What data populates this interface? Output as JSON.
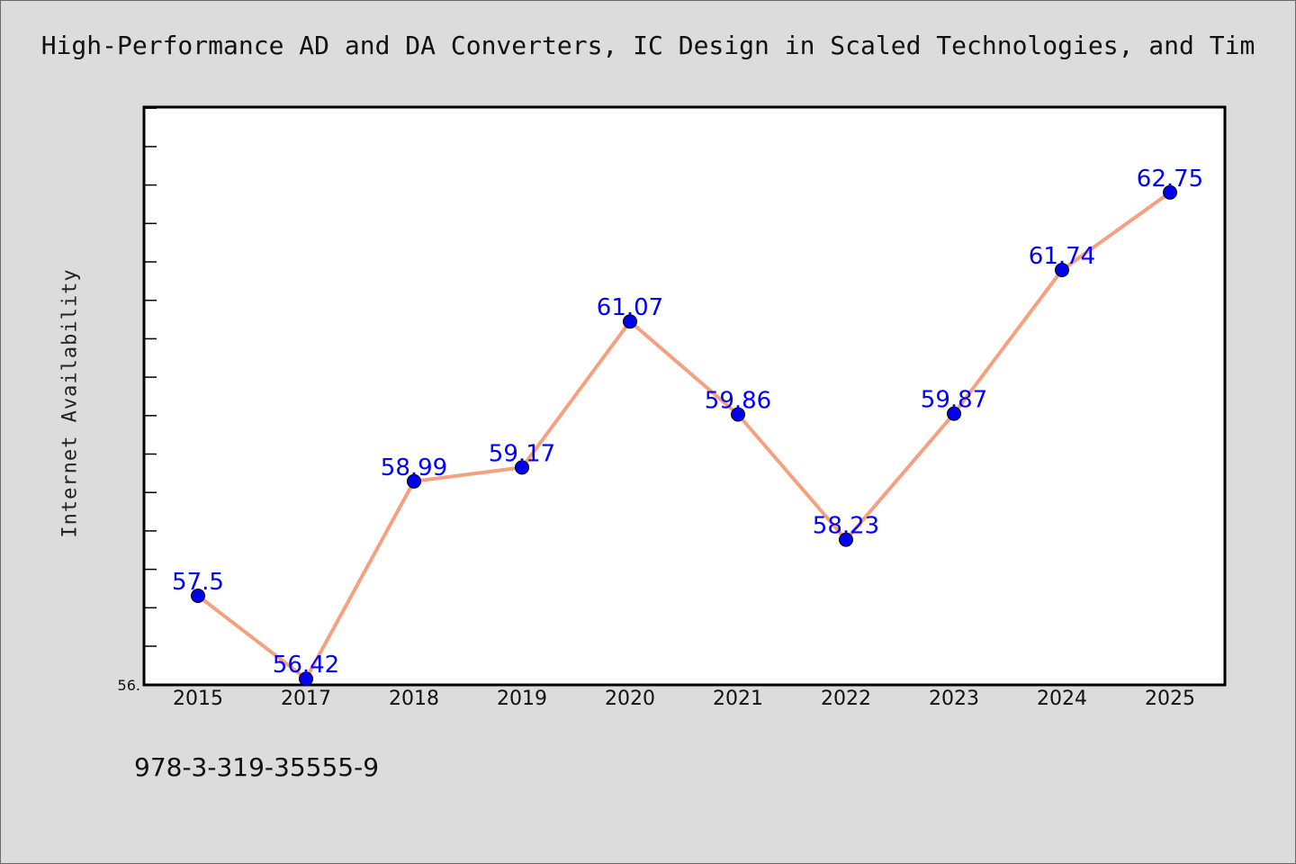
{
  "chart_data": {
    "type": "line",
    "title": "High-Performance AD and DA Converters, IC Design in Scaled Technologies, and Tim",
    "ylabel": "Internet Availability",
    "xlabel": "",
    "categories": [
      "2015",
      "2017",
      "2018",
      "2019",
      "2020",
      "2021",
      "2022",
      "2023",
      "2024",
      "2025"
    ],
    "series": [
      {
        "values": [
          57.5,
          56.42,
          58.99,
          59.17,
          61.07,
          59.86,
          58.23,
          59.87,
          61.74,
          62.75
        ],
        "labels": [
          "57.5",
          "56.42",
          "58.99",
          "59.17",
          "61.07",
          "59.86",
          "58.23",
          "59.87",
          "61.74",
          "62.75"
        ],
        "line_color": "#f5a07f",
        "marker_color": "#0000ee"
      }
    ],
    "ylim": [
      56.34,
      63.86
    ],
    "y_min_label": "56.",
    "grid": false
  },
  "footer": {
    "isbn": "978-3-319-35555-9"
  },
  "colors": {
    "background": "#dcdcdc",
    "plot_background": "#ffffff",
    "line": "#f5a07f",
    "marker": "#0000ee",
    "data_label": "#0000ff"
  }
}
